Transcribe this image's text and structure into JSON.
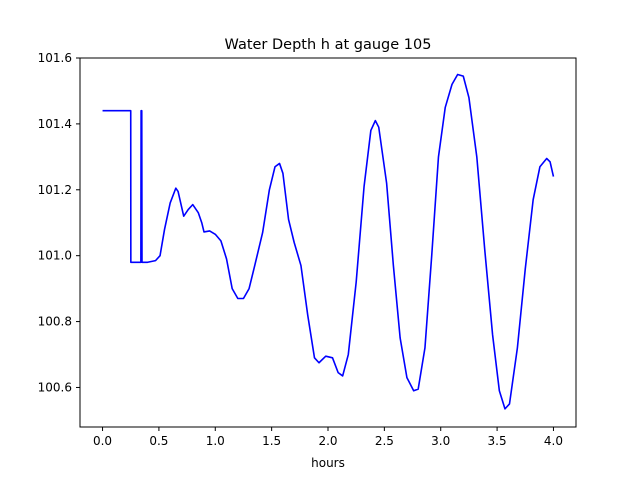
{
  "chart_data": {
    "type": "line",
    "title": "Water Depth h at gauge 105",
    "xlabel": "hours",
    "ylabel": "",
    "xlim": [
      -0.2,
      4.2
    ],
    "ylim": [
      100.48,
      101.6
    ],
    "xticks": [
      0.0,
      0.5,
      1.0,
      1.5,
      2.0,
      2.5,
      3.0,
      3.5,
      4.0
    ],
    "xtick_labels": [
      "0.0",
      "0.5",
      "1.0",
      "1.5",
      "2.0",
      "2.5",
      "3.0",
      "3.5",
      "4.0"
    ],
    "yticks": [
      100.6,
      100.8,
      101.0,
      101.2,
      101.4,
      101.6
    ],
    "ytick_labels": [
      "100.6",
      "100.8",
      "101.0",
      "101.2",
      "101.4",
      "101.6"
    ],
    "grid": false,
    "series": [
      {
        "color": "#0000ff",
        "points": [
          [
            0.0,
            101.44
          ],
          [
            0.25,
            101.44
          ],
          [
            0.251,
            100.98
          ],
          [
            0.34,
            100.98
          ],
          [
            0.342,
            101.44
          ],
          [
            0.348,
            101.44
          ],
          [
            0.35,
            100.98
          ],
          [
            0.4,
            100.98
          ],
          [
            0.47,
            100.985
          ],
          [
            0.51,
            101.0
          ],
          [
            0.55,
            101.08
          ],
          [
            0.6,
            101.16
          ],
          [
            0.65,
            101.205
          ],
          [
            0.67,
            101.195
          ],
          [
            0.72,
            101.12
          ],
          [
            0.76,
            101.14
          ],
          [
            0.8,
            101.155
          ],
          [
            0.85,
            101.13
          ],
          [
            0.88,
            101.1
          ],
          [
            0.9,
            101.072
          ],
          [
            0.95,
            101.075
          ],
          [
            1.0,
            101.065
          ],
          [
            1.05,
            101.045
          ],
          [
            1.1,
            100.99
          ],
          [
            1.15,
            100.9
          ],
          [
            1.2,
            100.87
          ],
          [
            1.25,
            100.87
          ],
          [
            1.3,
            100.9
          ],
          [
            1.35,
            100.97
          ],
          [
            1.42,
            101.07
          ],
          [
            1.48,
            101.2
          ],
          [
            1.53,
            101.27
          ],
          [
            1.57,
            101.28
          ],
          [
            1.6,
            101.25
          ],
          [
            1.65,
            101.11
          ],
          [
            1.7,
            101.04
          ],
          [
            1.76,
            100.97
          ],
          [
            1.82,
            100.82
          ],
          [
            1.88,
            100.69
          ],
          [
            1.92,
            100.675
          ],
          [
            1.98,
            100.695
          ],
          [
            2.04,
            100.69
          ],
          [
            2.09,
            100.645
          ],
          [
            2.13,
            100.635
          ],
          [
            2.18,
            100.7
          ],
          [
            2.25,
            100.92
          ],
          [
            2.32,
            101.21
          ],
          [
            2.38,
            101.38
          ],
          [
            2.42,
            101.41
          ],
          [
            2.45,
            101.39
          ],
          [
            2.52,
            101.22
          ],
          [
            2.58,
            100.97
          ],
          [
            2.64,
            100.75
          ],
          [
            2.7,
            100.63
          ],
          [
            2.76,
            100.59
          ],
          [
            2.8,
            100.595
          ],
          [
            2.86,
            100.72
          ],
          [
            2.92,
            101.0
          ],
          [
            2.98,
            101.3
          ],
          [
            3.04,
            101.45
          ],
          [
            3.1,
            101.52
          ],
          [
            3.15,
            101.55
          ],
          [
            3.2,
            101.545
          ],
          [
            3.25,
            101.48
          ],
          [
            3.32,
            101.3
          ],
          [
            3.39,
            101.02
          ],
          [
            3.46,
            100.76
          ],
          [
            3.52,
            100.59
          ],
          [
            3.57,
            100.535
          ],
          [
            3.61,
            100.55
          ],
          [
            3.68,
            100.72
          ],
          [
            3.75,
            100.96
          ],
          [
            3.82,
            101.17
          ],
          [
            3.88,
            101.27
          ],
          [
            3.94,
            101.295
          ],
          [
            3.97,
            101.285
          ],
          [
            4.0,
            101.24
          ]
        ]
      }
    ]
  }
}
